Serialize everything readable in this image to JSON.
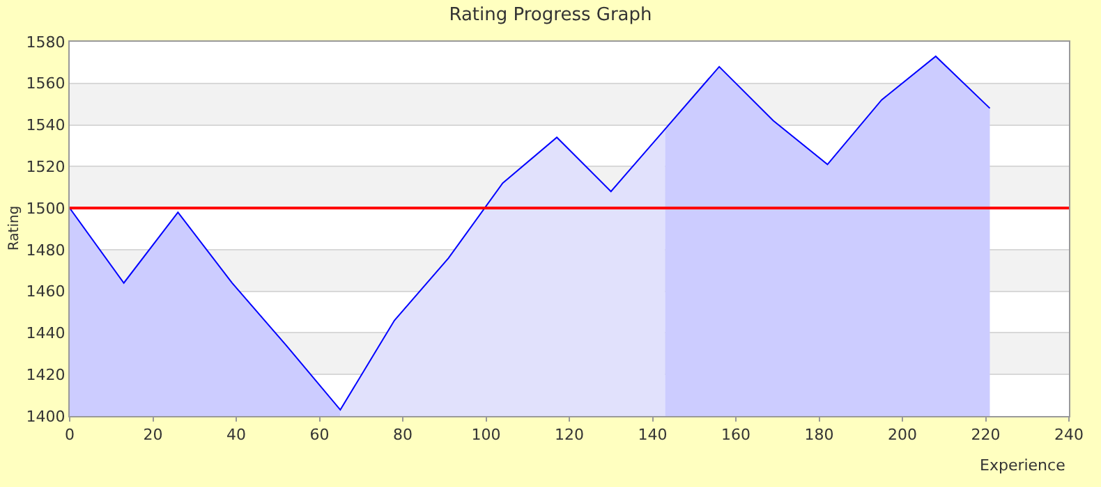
{
  "chart_data": {
    "type": "area",
    "title": "Rating Progress Graph",
    "xlabel": "Experience",
    "ylabel": "Rating",
    "series": [
      {
        "color": "#ccccff",
        "x": [
          0,
          13,
          26,
          39,
          52,
          65
        ],
        "values": [
          1500,
          1464,
          1498,
          1464,
          1434,
          1403
        ]
      },
      {
        "color": "#e1e1fc",
        "x": [
          65,
          78,
          91,
          104,
          117,
          130,
          143
        ],
        "values": [
          1403,
          1446,
          1476,
          1512,
          1534,
          1508,
          1538
        ]
      },
      {
        "color": "#ccccff",
        "x": [
          143,
          156,
          169,
          182,
          195,
          208,
          221
        ],
        "values": [
          1538,
          1568,
          1542,
          1521,
          1552,
          1573,
          1548
        ]
      },
      {
        "type": "line",
        "color": "#0000ff",
        "x": [
          0,
          13,
          26,
          39,
          52,
          65,
          78,
          91,
          104,
          117,
          130,
          143,
          156,
          169,
          182,
          195,
          208,
          221
        ],
        "values": [
          1500,
          1464,
          1498,
          1464,
          1434,
          1403,
          1446,
          1476,
          1512,
          1534,
          1508,
          1538,
          1568,
          1542,
          1521,
          1552,
          1573,
          1548
        ]
      }
    ],
    "xlim": [
      0,
      240
    ],
    "xticks": [
      0,
      20,
      40,
      60,
      80,
      100,
      120,
      140,
      160,
      180,
      200,
      220,
      240
    ],
    "ylim": [
      1400,
      1580
    ],
    "yticks": [
      1400,
      1420,
      1440,
      1460,
      1480,
      1500,
      1520,
      1540,
      1560,
      1580
    ],
    "grid": "y",
    "marker": "none",
    "line_style": "solid",
    "ref_lines": [
      {
        "axis": "y",
        "value": 1500,
        "color": "#ff0000",
        "line_style": "solid"
      }
    ],
    "bands": [
      {
        "axis": "y",
        "from": 1420,
        "to": 1440,
        "color": "#f2f2f2"
      },
      {
        "axis": "y",
        "from": 1460,
        "to": 1480,
        "color": "#f2f2f2"
      },
      {
        "axis": "y",
        "from": 1500,
        "to": 1520,
        "color": "#f2f2f2"
      },
      {
        "axis": "y",
        "from": 1540,
        "to": 1560,
        "color": "#f2f2f2"
      }
    ]
  }
}
